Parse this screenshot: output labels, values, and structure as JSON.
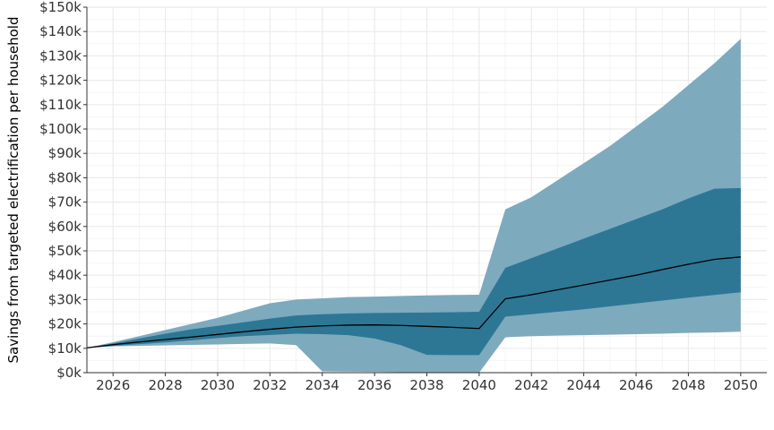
{
  "chart_data": {
    "type": "area",
    "title": "",
    "xlabel": "",
    "ylabel": "Savings from targeted electrification per household",
    "xlim": [
      2025,
      2051
    ],
    "ylim": [
      0,
      150000
    ],
    "x_ticks": [
      2026,
      2028,
      2030,
      2032,
      2034,
      2036,
      2038,
      2040,
      2042,
      2044,
      2046,
      2048,
      2050
    ],
    "x_tick_labels": [
      "2026",
      "2028",
      "2030",
      "2032",
      "2034",
      "2036",
      "2038",
      "2040",
      "2042",
      "2044",
      "2046",
      "2048",
      "2050"
    ],
    "y_ticks": [
      0,
      10000,
      20000,
      30000,
      40000,
      50000,
      60000,
      70000,
      80000,
      90000,
      100000,
      110000,
      120000,
      130000,
      140000,
      150000
    ],
    "y_tick_labels": [
      "$0k",
      "$10k",
      "$20k",
      "$30k",
      "$40k",
      "$50k",
      "$60k",
      "$70k",
      "$80k",
      "$90k",
      "$100k",
      "$110k",
      "$120k",
      "$130k",
      "$140k",
      "$150k"
    ],
    "grid": true,
    "legend": "none",
    "colors": {
      "outer_band": "#7eaabe",
      "inner_band": "#2d7795",
      "median_line": "#000000",
      "grid": "#ebebeb",
      "baseline": "#000000"
    },
    "x": [
      2025,
      2026,
      2027,
      2028,
      2029,
      2030,
      2031,
      2032,
      2033,
      2034,
      2035,
      2036,
      2037,
      2038,
      2039,
      2040,
      2041,
      2042,
      2043,
      2044,
      2045,
      2046,
      2047,
      2048,
      2049,
      2050
    ],
    "series": [
      {
        "role": "outer-band",
        "lower": [
          10200,
          10800,
          11000,
          11200,
          11400,
          11600,
          11800,
          12000,
          11300,
          500,
          400,
          300,
          200,
          100,
          100,
          0,
          14500,
          15000,
          15200,
          15400,
          15600,
          15800,
          16000,
          16300,
          16500,
          16800
        ],
        "upper": [
          10200,
          12500,
          15000,
          17500,
          20000,
          22500,
          25500,
          28500,
          30000,
          30500,
          31000,
          31200,
          31500,
          31700,
          31900,
          32000,
          67000,
          72000,
          79000,
          86000,
          93000,
          101000,
          109000,
          118000,
          127000,
          137000
        ]
      },
      {
        "role": "inner-band",
        "lower": [
          10200,
          11000,
          11700,
          12400,
          13300,
          14200,
          15000,
          15500,
          16000,
          15800,
          15400,
          14000,
          11300,
          7300,
          7200,
          7200,
          23000,
          24000,
          25000,
          26000,
          27200,
          28400,
          29600,
          30800,
          31900,
          33000
        ],
        "upper": [
          10200,
          12000,
          14000,
          16000,
          17800,
          19200,
          20700,
          22200,
          23500,
          24000,
          24300,
          24500,
          24600,
          24700,
          24800,
          25000,
          43000,
          47000,
          51000,
          55000,
          59000,
          63000,
          67000,
          71500,
          75500,
          75800
        ]
      },
      {
        "role": "median",
        "values": [
          10200,
          11500,
          12600,
          13600,
          14600,
          15700,
          16800,
          17800,
          18700,
          19200,
          19500,
          19600,
          19400,
          19000,
          18600,
          18100,
          30300,
          32000,
          34000,
          36000,
          38000,
          40000,
          42300,
          44500,
          46500,
          47500
        ]
      }
    ]
  }
}
